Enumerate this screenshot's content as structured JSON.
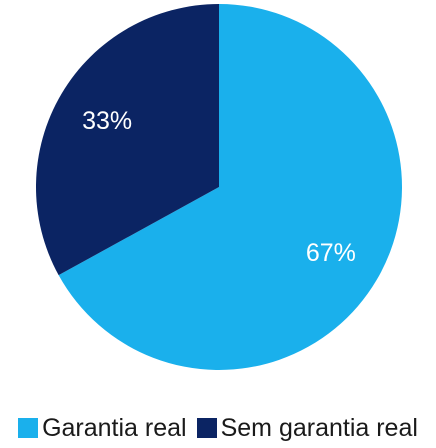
{
  "chart_data": {
    "type": "pie",
    "title": "",
    "categories": [
      "Garantia real",
      "Sem garantia real"
    ],
    "values": [
      67,
      33
    ],
    "data_labels": [
      "67%",
      "33%"
    ],
    "colors": [
      "#1ab0ec",
      "#0b2463"
    ],
    "start": "12 o'clock",
    "direction": "clockwise",
    "legend": "bottom"
  },
  "legend": {
    "items": [
      {
        "label": "Garantia real",
        "color": "#1ab0ec"
      },
      {
        "label": "Sem garantia real",
        "color": "#0b2463"
      }
    ]
  }
}
